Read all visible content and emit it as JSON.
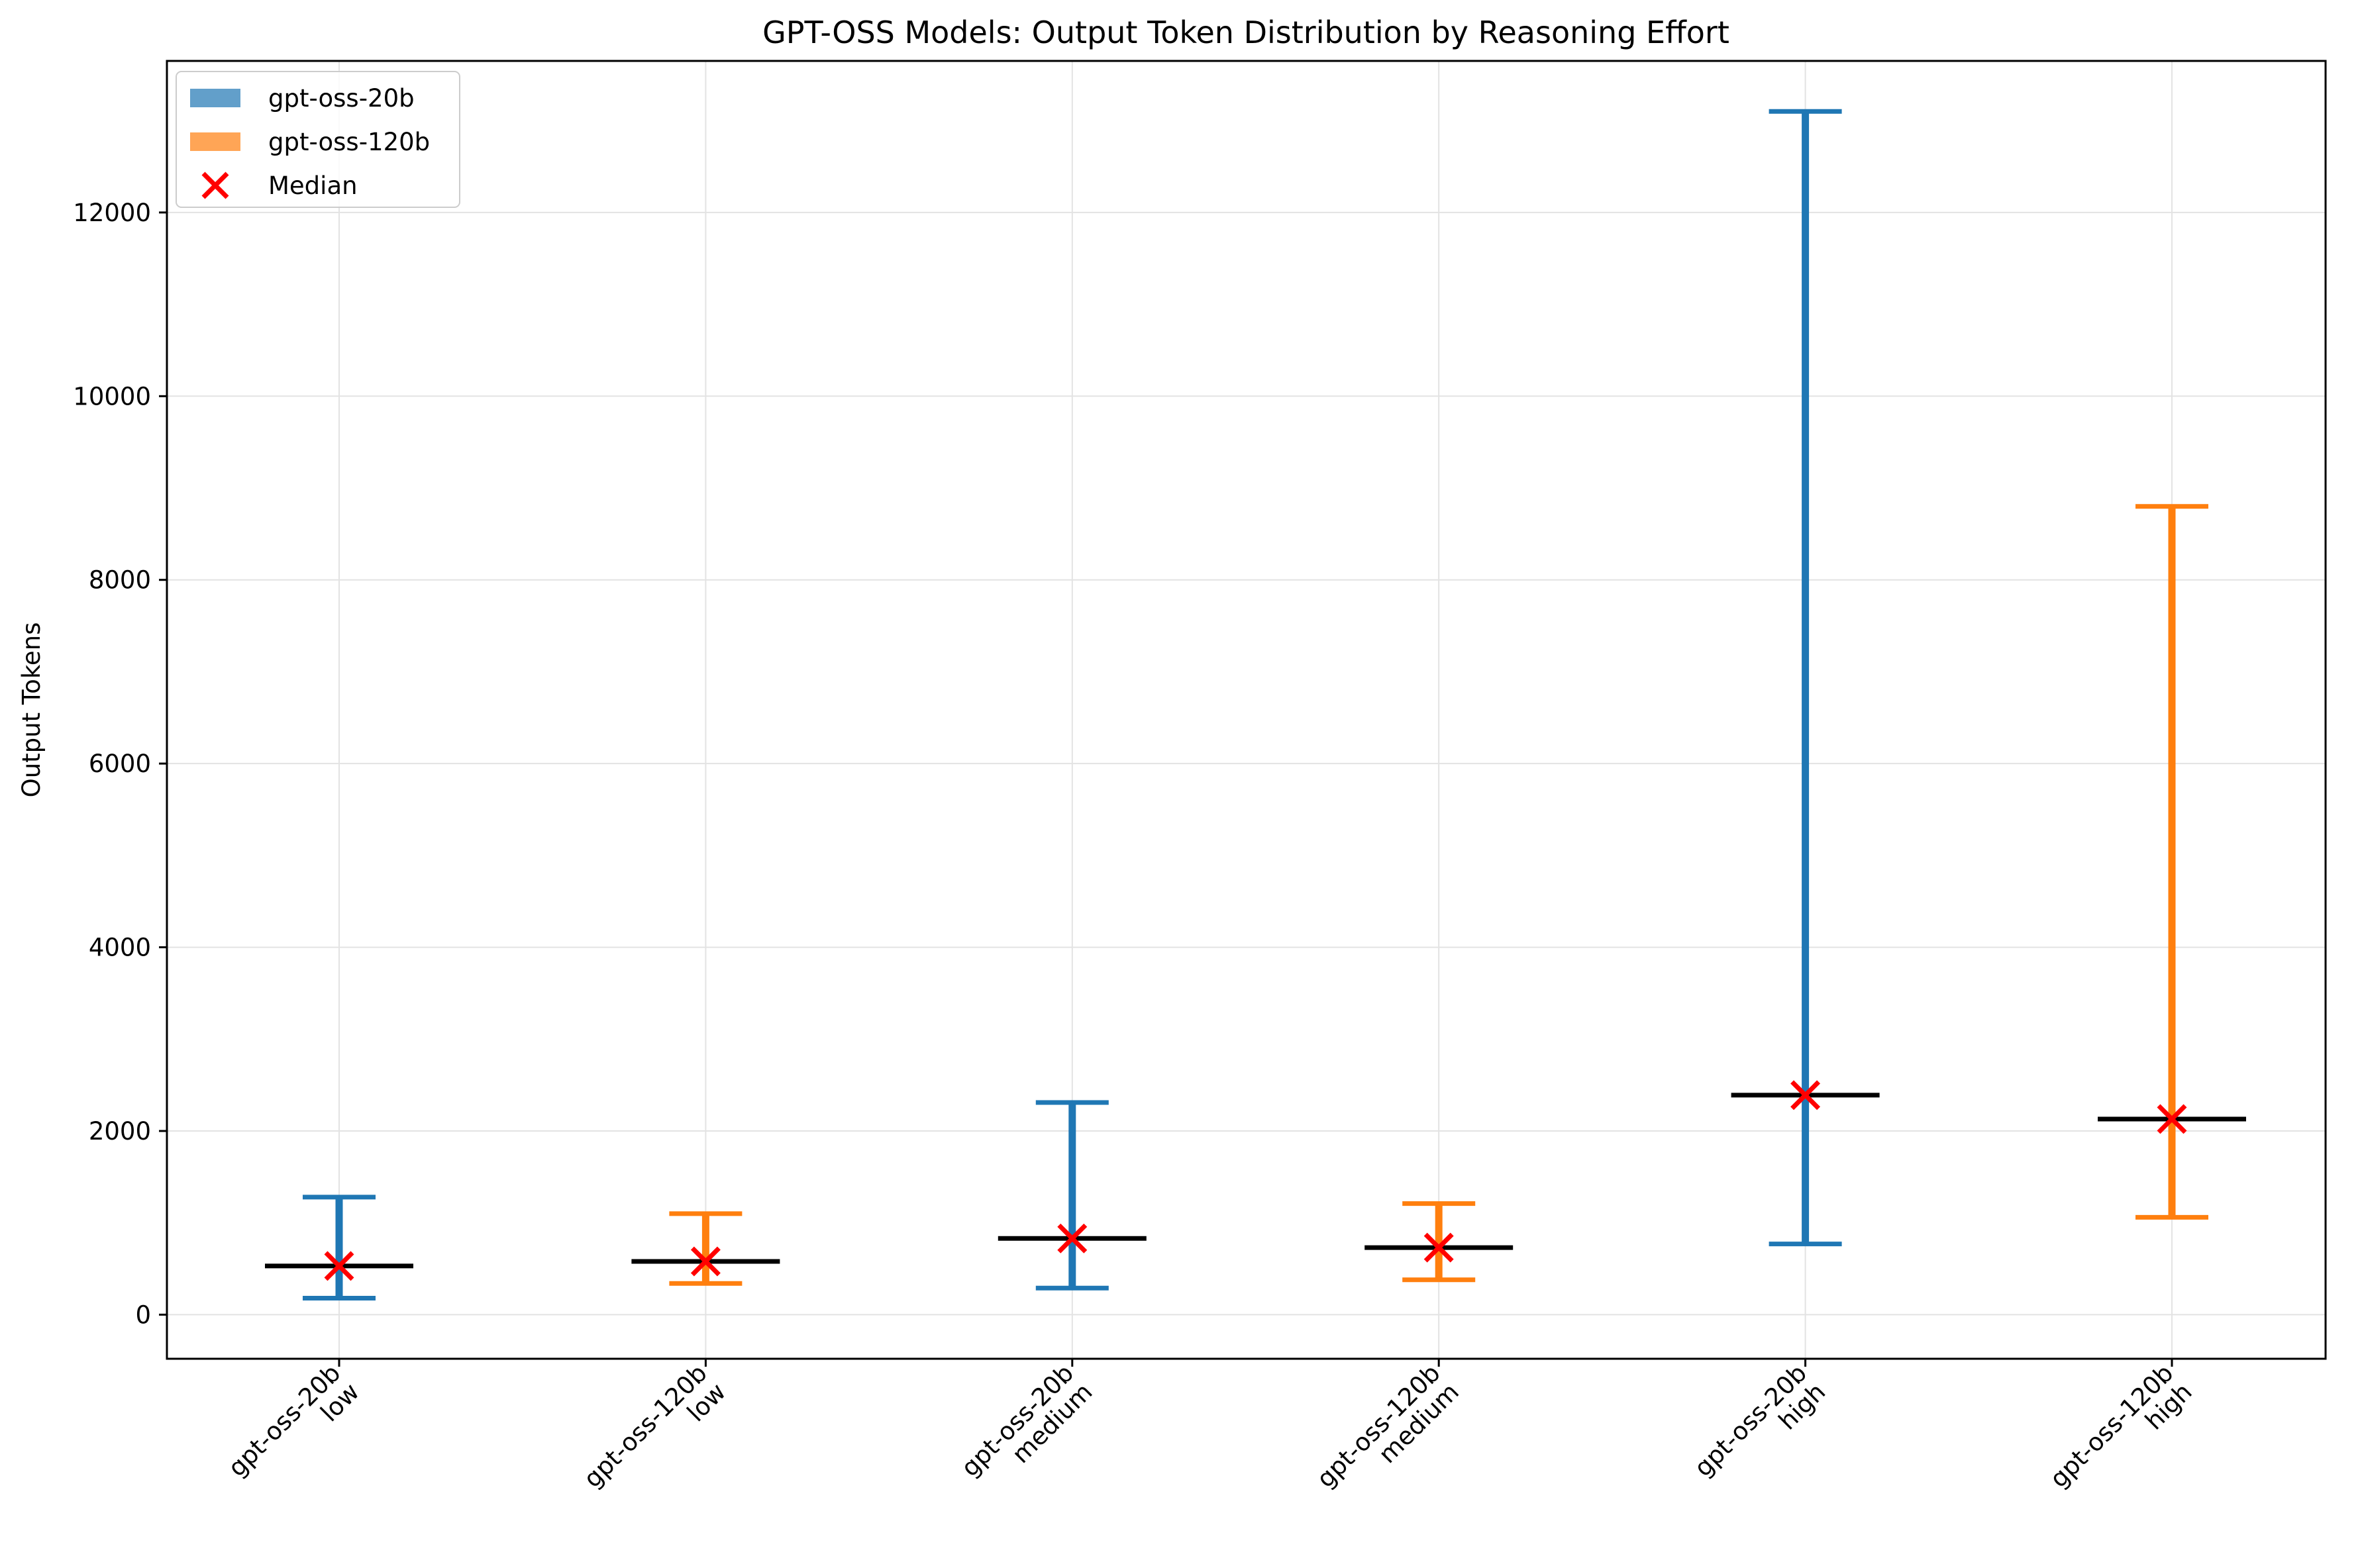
{
  "chart_data": {
    "type": "range",
    "title": "GPT-OSS Models: Output Token Distribution by Reasoning Effort",
    "xlabel": "",
    "ylabel": "Output Tokens",
    "ylim": [
      -480,
      13650
    ],
    "yticks": [
      0,
      2000,
      4000,
      6000,
      8000,
      10000,
      12000
    ],
    "grid": true,
    "legend_position": "top-left",
    "categories": [
      [
        "gpt-oss-20b",
        "low"
      ],
      [
        "gpt-oss-120b",
        "low"
      ],
      [
        "gpt-oss-20b",
        "medium"
      ],
      [
        "gpt-oss-120b",
        "medium"
      ],
      [
        "gpt-oss-20b",
        "high"
      ],
      [
        "gpt-oss-120b",
        "high"
      ]
    ],
    "series": [
      {
        "name": "gpt-oss-20b",
        "color": "#1f77b4",
        "legend_color": "#629fca",
        "points": [
          {
            "category_index": 0,
            "min": 180,
            "max": 1280,
            "median": 530
          },
          {
            "category_index": 2,
            "min": 290,
            "max": 2310,
            "median": 830
          },
          {
            "category_index": 4,
            "min": 770,
            "max": 13100,
            "median": 2390
          }
        ]
      },
      {
        "name": "gpt-oss-120b",
        "color": "#ff7f0e",
        "legend_color": "#ffa556",
        "points": [
          {
            "category_index": 1,
            "min": 340,
            "max": 1100,
            "median": 580
          },
          {
            "category_index": 3,
            "min": 380,
            "max": 1210,
            "median": 730
          },
          {
            "category_index": 5,
            "min": 1060,
            "max": 8800,
            "median": 2130
          }
        ]
      }
    ],
    "median_marker": {
      "name": "Median",
      "color": "#ff0000",
      "marker": "x"
    },
    "median_line_color": "#000000"
  }
}
